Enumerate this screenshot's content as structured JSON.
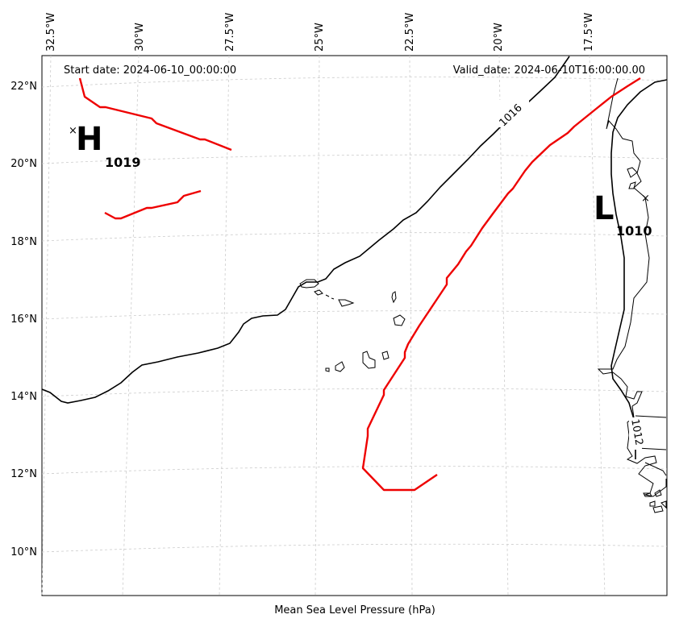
{
  "map": {
    "start_date": "Start date: 2024-06-10_00:00:00",
    "valid_date": "Valid_date: 2024-06-10T16:00:00.00",
    "x_label": "Mean Sea Level Pressure (hPa)",
    "lon_ticks": [
      "32.5°W",
      "30°W",
      "27.5°W",
      "25°W",
      "22.5°W",
      "20°W",
      "17.5°W"
    ],
    "lat_ticks": [
      "22°N",
      "20°N",
      "18°N",
      "16°N",
      "14°N",
      "12°N",
      "10°N"
    ],
    "high": {
      "letter": "H",
      "value": "1019"
    },
    "low": {
      "letter": "L",
      "value": "1010"
    },
    "isobars": [
      {
        "label": "1016",
        "color": "#000000"
      },
      {
        "label": "1012",
        "color": "#000000"
      }
    ],
    "front_color": "#ee0000",
    "coast_color": "#000000",
    "grid_color": "#cccccc"
  }
}
